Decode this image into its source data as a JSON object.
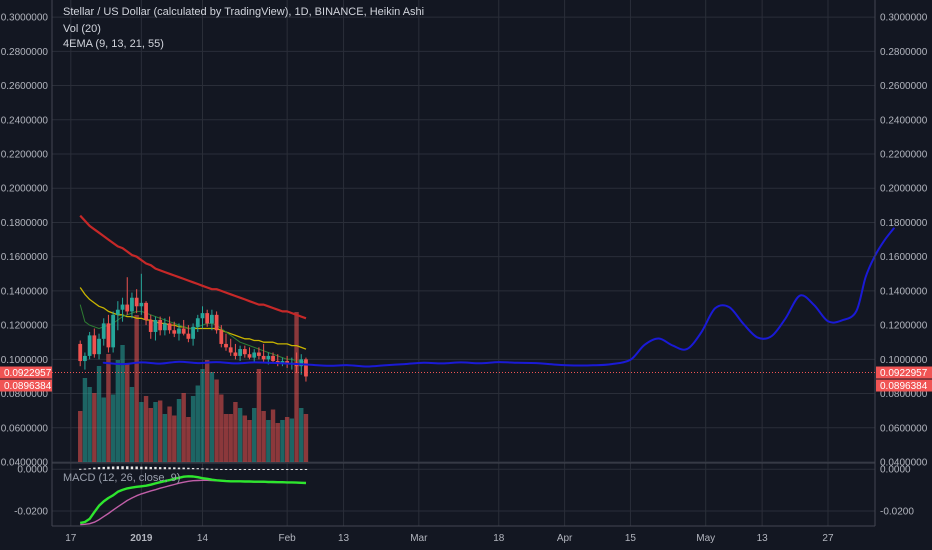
{
  "header": {
    "title": "Stellar / US Dollar (calculated by TradingView), 1D, BINANCE, Heikin Ashi",
    "volume_label": "Vol (20)",
    "ema_label": "4EMA (9, 13, 21, 55)",
    "macd_label": "MACD (12, 26, close, 9)"
  },
  "colors": {
    "background": "#131722",
    "grid": "#2a2e39",
    "up": "#26a69a",
    "down": "#ef5350",
    "ema_red": "#c62828",
    "ema_yellow": "#c8b400",
    "projection": "#1a1ad6",
    "macd_green": "#2ee62e",
    "macd_purple": "#c05fa8",
    "price_tag": "#f05454"
  },
  "chart_data": [
    {
      "type": "candlestick",
      "title": "Stellar / US Dollar (calculated by TradingView), 1D, BINANCE, Heikin Ashi",
      "ylim": [
        0.04,
        0.31
      ],
      "y_ticks": [
        "0.3000000",
        "0.2800000",
        "0.2600000",
        "0.2400000",
        "0.2200000",
        "0.2000000",
        "0.1800000",
        "0.1600000",
        "0.1400000",
        "0.1200000",
        "0.1000000",
        "0.0800000",
        "0.0600000",
        "0.0400000"
      ],
      "x_ticks": [
        {
          "label": "17",
          "day": -15
        },
        {
          "label": "2019",
          "day": 0
        },
        {
          "label": "14",
          "day": 13
        },
        {
          "label": "Feb",
          "day": 31
        },
        {
          "label": "13",
          "day": 43
        },
        {
          "label": "Mar",
          "day": 59
        },
        {
          "label": "18",
          "day": 76
        },
        {
          "label": "Apr",
          "day": 90
        },
        {
          "label": "15",
          "day": 104
        },
        {
          "label": "May",
          "day": 120
        },
        {
          "label": "13",
          "day": 132
        },
        {
          "label": "27",
          "day": 146
        }
      ],
      "price_labels": [
        {
          "value": 0.0922957,
          "text": "0.0922957"
        },
        {
          "value": 0.0896384,
          "text": "0.0896384"
        }
      ],
      "candles": [
        [
          0.109,
          0.111,
          0.096,
          0.099
        ],
        [
          0.099,
          0.104,
          0.094,
          0.102
        ],
        [
          0.102,
          0.116,
          0.1,
          0.114
        ],
        [
          0.114,
          0.118,
          0.101,
          0.103
        ],
        [
          0.103,
          0.115,
          0.1,
          0.112
        ],
        [
          0.112,
          0.124,
          0.108,
          0.121
        ],
        [
          0.121,
          0.126,
          0.104,
          0.107
        ],
        [
          0.107,
          0.128,
          0.104,
          0.126
        ],
        [
          0.126,
          0.134,
          0.117,
          0.129
        ],
        [
          0.129,
          0.136,
          0.122,
          0.132
        ],
        [
          0.132,
          0.148,
          0.126,
          0.128
        ],
        [
          0.128,
          0.139,
          0.124,
          0.136
        ],
        [
          0.136,
          0.141,
          0.127,
          0.131
        ],
        [
          0.131,
          0.15,
          0.126,
          0.133
        ],
        [
          0.133,
          0.134,
          0.12,
          0.123
        ],
        [
          0.123,
          0.126,
          0.112,
          0.116
        ],
        [
          0.116,
          0.125,
          0.111,
          0.123
        ],
        [
          0.123,
          0.125,
          0.114,
          0.117
        ],
        [
          0.117,
          0.124,
          0.114,
          0.121
        ],
        [
          0.121,
          0.125,
          0.115,
          0.117
        ],
        [
          0.117,
          0.122,
          0.113,
          0.115
        ],
        [
          0.115,
          0.121,
          0.111,
          0.118
        ],
        [
          0.118,
          0.123,
          0.114,
          0.115
        ],
        [
          0.115,
          0.12,
          0.11,
          0.112
        ],
        [
          0.112,
          0.121,
          0.108,
          0.119
        ],
        [
          0.119,
          0.126,
          0.116,
          0.124
        ],
        [
          0.124,
          0.131,
          0.118,
          0.127
        ],
        [
          0.127,
          0.129,
          0.119,
          0.121
        ],
        [
          0.121,
          0.129,
          0.117,
          0.126
        ],
        [
          0.126,
          0.128,
          0.115,
          0.117
        ],
        [
          0.117,
          0.12,
          0.107,
          0.109
        ],
        [
          0.109,
          0.115,
          0.105,
          0.107
        ],
        [
          0.107,
          0.112,
          0.102,
          0.104
        ],
        [
          0.104,
          0.109,
          0.1,
          0.102
        ],
        [
          0.102,
          0.108,
          0.099,
          0.106
        ],
        [
          0.106,
          0.108,
          0.101,
          0.103
        ],
        [
          0.103,
          0.107,
          0.1,
          0.101
        ],
        [
          0.101,
          0.106,
          0.098,
          0.104
        ],
        [
          0.104,
          0.107,
          0.1,
          0.102
        ],
        [
          0.102,
          0.109,
          0.098,
          0.1
        ],
        [
          0.1,
          0.104,
          0.097,
          0.102
        ],
        [
          0.102,
          0.104,
          0.098,
          0.099
        ],
        [
          0.099,
          0.103,
          0.096,
          0.098
        ],
        [
          0.098,
          0.101,
          0.096,
          0.099
        ],
        [
          0.099,
          0.102,
          0.095,
          0.097
        ],
        [
          0.097,
          0.101,
          0.094,
          0.098
        ],
        [
          0.098,
          0.104,
          0.092,
          0.096
        ],
        [
          0.096,
          0.103,
          0.091,
          0.1
        ],
        [
          0.1,
          0.101,
          0.087,
          0.09
        ]
      ],
      "volumes": [
        0.34,
        0.56,
        0.5,
        0.46,
        0.64,
        0.43,
        0.72,
        0.45,
        0.68,
        0.78,
        0.66,
        0.5,
        0.98,
        0.4,
        0.44,
        0.36,
        0.4,
        0.41,
        0.32,
        0.37,
        0.31,
        0.42,
        0.46,
        0.3,
        0.44,
        0.51,
        0.62,
        0.68,
        0.6,
        0.55,
        0.45,
        0.32,
        0.32,
        0.4,
        0.36,
        0.31,
        0.28,
        0.36,
        0.62,
        0.34,
        0.28,
        0.35,
        0.26,
        0.28,
        0.3,
        0.29,
        1.0,
        0.36,
        0.32
      ],
      "ema_yellow": [
        0.142,
        0.138,
        0.135,
        0.133,
        0.131,
        0.13,
        0.128,
        0.127,
        0.126,
        0.126,
        0.125,
        0.125,
        0.124,
        0.124,
        0.123,
        0.123,
        0.122,
        0.121,
        0.121,
        0.12,
        0.12,
        0.119,
        0.119,
        0.118,
        0.118,
        0.118,
        0.118,
        0.118,
        0.118,
        0.118,
        0.117,
        0.116,
        0.115,
        0.114,
        0.113,
        0.112,
        0.112,
        0.111,
        0.111,
        0.11,
        0.11,
        0.11,
        0.109,
        0.109,
        0.109,
        0.108,
        0.108,
        0.107,
        0.106
      ],
      "ema_green": [
        0.132,
        0.122,
        0.12,
        0.119,
        0.118,
        0.119,
        0.12,
        0.121,
        0.123,
        0.125,
        0.126,
        0.127,
        0.128,
        0.128,
        0.127,
        0.126,
        0.125,
        0.124,
        0.123,
        0.122,
        0.121,
        0.12,
        0.119,
        0.118,
        0.118,
        0.119,
        0.12,
        0.121,
        0.121,
        0.12,
        0.118,
        0.116,
        0.114,
        0.112,
        0.11,
        0.109,
        0.108,
        0.107,
        0.106,
        0.105,
        0.104,
        0.103,
        0.102,
        0.101,
        0.1,
        0.1,
        0.099,
        0.099,
        0.098
      ],
      "ema_red": [
        0.184,
        0.181,
        0.178,
        0.176,
        0.174,
        0.172,
        0.17,
        0.168,
        0.166,
        0.165,
        0.163,
        0.161,
        0.16,
        0.158,
        0.156,
        0.155,
        0.153,
        0.152,
        0.151,
        0.15,
        0.149,
        0.148,
        0.147,
        0.146,
        0.145,
        0.144,
        0.143,
        0.142,
        0.141,
        0.141,
        0.14,
        0.139,
        0.138,
        0.137,
        0.136,
        0.135,
        0.134,
        0.133,
        0.132,
        0.132,
        0.131,
        0.13,
        0.129,
        0.128,
        0.128,
        0.127,
        0.126,
        0.125,
        0.124
      ],
      "projection": [
        [
          -8,
          0.098
        ],
        [
          -4,
          0.0972
        ],
        [
          0,
          0.0982
        ],
        [
          4,
          0.0975
        ],
        [
          8,
          0.0986
        ],
        [
          12,
          0.0978
        ],
        [
          16,
          0.0984
        ],
        [
          20,
          0.0976
        ],
        [
          24,
          0.0982
        ],
        [
          28,
          0.0979
        ],
        [
          32,
          0.0974
        ],
        [
          36,
          0.0968
        ],
        [
          40,
          0.0962
        ],
        [
          44,
          0.0966
        ],
        [
          48,
          0.0958
        ],
        [
          52,
          0.0966
        ],
        [
          56,
          0.0972
        ],
        [
          60,
          0.098
        ],
        [
          64,
          0.0976
        ],
        [
          68,
          0.0982
        ],
        [
          72,
          0.0977
        ],
        [
          76,
          0.0984
        ],
        [
          80,
          0.098
        ],
        [
          84,
          0.0978
        ],
        [
          88,
          0.0969
        ],
        [
          92,
          0.0964
        ],
        [
          96,
          0.0965
        ],
        [
          100,
          0.0972
        ],
        [
          104,
          0.0998
        ],
        [
          107,
          0.1085
        ],
        [
          110,
          0.1122
        ],
        [
          113,
          0.108
        ],
        [
          116,
          0.106
        ],
        [
          119,
          0.1155
        ],
        [
          122,
          0.1298
        ],
        [
          125,
          0.1305
        ],
        [
          128,
          0.1208
        ],
        [
          131,
          0.1128
        ],
        [
          134,
          0.1135
        ],
        [
          137,
          0.124
        ],
        [
          140,
          0.1372
        ],
        [
          143,
          0.1318
        ],
        [
          146,
          0.1222
        ],
        [
          149,
          0.1228
        ],
        [
          152,
          0.128
        ],
        [
          154,
          0.148
        ],
        [
          156,
          0.1605
        ],
        [
          158,
          0.1695
        ],
        [
          160,
          0.1765
        ]
      ]
    },
    {
      "type": "line",
      "title": "MACD (12, 26, close, 9)",
      "ylim": [
        -0.0272,
        0.0025
      ],
      "y_ticks": [
        "0.0000",
        "-0.0200"
      ],
      "macd": [
        -0.0257,
        -0.0253,
        -0.0238,
        -0.0206,
        -0.0175,
        -0.0154,
        -0.0138,
        -0.0125,
        -0.0108,
        -0.0099,
        -0.0092,
        -0.0088,
        -0.0084,
        -0.0082,
        -0.0079,
        -0.0074,
        -0.0068,
        -0.0062,
        -0.0057,
        -0.0052,
        -0.0046,
        -0.0041,
        -0.0036,
        -0.0034,
        -0.0035,
        -0.0038,
        -0.0043,
        -0.0046,
        -0.005,
        -0.0053,
        -0.0055,
        -0.0057,
        -0.0058,
        -0.0058,
        -0.0058,
        -0.0059,
        -0.0059,
        -0.006,
        -0.006,
        -0.006,
        -0.0061,
        -0.0061,
        -0.0062,
        -0.0062,
        -0.0063,
        -0.0063,
        -0.0064,
        -0.0065,
        -0.0066
      ],
      "signal": [
        -0.0265,
        -0.0264,
        -0.0261,
        -0.0254,
        -0.0242,
        -0.0227,
        -0.0212,
        -0.0196,
        -0.018,
        -0.0165,
        -0.015,
        -0.0138,
        -0.0127,
        -0.0118,
        -0.0111,
        -0.0104,
        -0.0098,
        -0.0091,
        -0.0085,
        -0.0079,
        -0.0073,
        -0.0067,
        -0.0062,
        -0.0058,
        -0.0055,
        -0.0054,
        -0.0053,
        -0.0053,
        -0.0054,
        -0.0055,
        -0.0056,
        -0.0057,
        -0.0058,
        -0.0059,
        -0.0059,
        -0.006,
        -0.006,
        -0.0061,
        -0.0061,
        -0.0062,
        -0.0062,
        -0.0063,
        -0.0063,
        -0.0064,
        -0.0064,
        -0.0065,
        -0.0065,
        -0.0066,
        -0.0066
      ],
      "histogram": [
        0.0002,
        0.0003,
        0.0005,
        0.0008,
        0.001,
        0.0011,
        0.0012,
        0.0013,
        0.0014,
        0.0014,
        0.0014,
        0.0013,
        0.0013,
        0.0012,
        0.0012,
        0.0011,
        0.0011,
        0.001,
        0.001,
        0.0009,
        0.0009,
        0.0008,
        0.0008,
        0.0007,
        0.0006,
        0.0005,
        0.0004,
        0.0003,
        0.0002,
        0.0002,
        0.0001,
        0.0001,
        0.0001,
        0.0001,
        0.0001,
        0.0001,
        0.0001,
        0.0001,
        0.0001,
        0.0001,
        0.0001,
        0.0001,
        0.0001,
        0.0001,
        0.0001,
        0.0001,
        0.0001,
        0.0001,
        0.0001
      ]
    }
  ]
}
